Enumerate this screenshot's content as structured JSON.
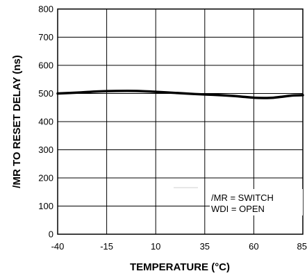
{
  "chart_data": {
    "type": "line",
    "title": "",
    "xlabel": "TEMPERATURE (°C)",
    "ylabel": "/MR TO RESET DELAY (ns)",
    "xlim": [
      -40,
      85
    ],
    "ylim": [
      0,
      800
    ],
    "x_ticks": [
      -40,
      -15,
      10,
      35,
      60,
      85
    ],
    "y_ticks": [
      0,
      100,
      200,
      300,
      400,
      500,
      600,
      700,
      800
    ],
    "grid": true,
    "legend_position": "bottom-right",
    "annotations": [
      "/MR = SWITCH",
      "WDI = OPEN"
    ],
    "series": [
      {
        "color": "#000000",
        "x": [
          -40,
          -30,
          -20,
          -10,
          0,
          10,
          20,
          30,
          40,
          50,
          55,
          60,
          65,
          70,
          75,
          80,
          85
        ],
        "y": [
          500,
          503,
          507,
          509,
          509,
          506,
          502,
          498,
          495,
          491,
          488,
          485,
          484,
          485,
          489,
          493,
          494
        ]
      }
    ]
  }
}
